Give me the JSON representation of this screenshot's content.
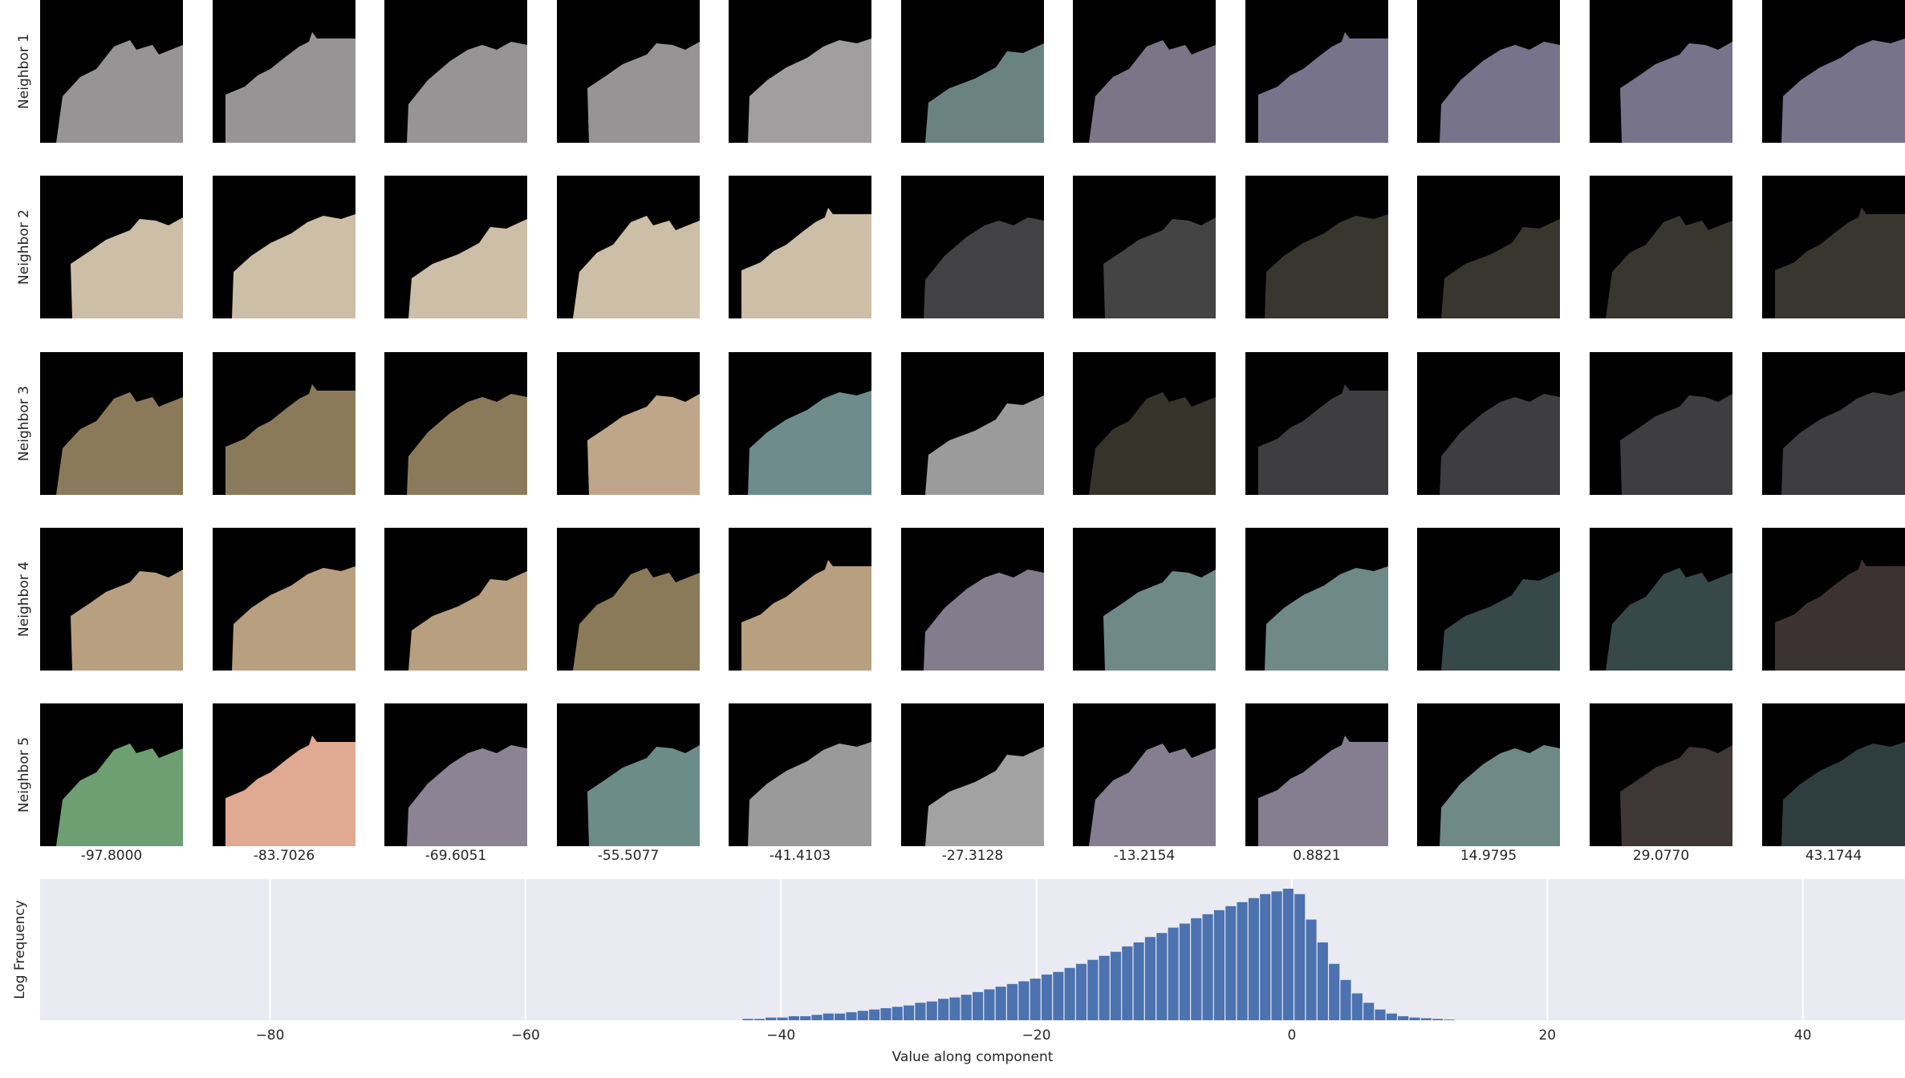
{
  "row_labels": [
    "Neighbor 1",
    "Neighbor 2",
    "Neighbor 3",
    "Neighbor 4",
    "Neighbor 5"
  ],
  "column_values": [
    "-97.8000",
    "-83.7026",
    "-69.6051",
    "-55.5077",
    "-41.4103",
    "-27.3128",
    "-13.2154",
    "0.8821",
    "14.9795",
    "29.0770",
    "43.1744"
  ],
  "tiles": [
    [
      "#979495",
      "#979495",
      "#979495",
      "#979495",
      "#a09e9e",
      "#6a8380",
      "#7a7688",
      "#77738a",
      "#77738a",
      "#77738a",
      "#77738a"
    ],
    [
      "#cdbea7",
      "#cdbea7",
      "#cdbea7",
      "#cdbea7",
      "#cdbea7",
      "#424244",
      "#444445",
      "#373730",
      "#373730",
      "#373730",
      "#373730"
    ],
    [
      "#8b7a5a",
      "#8b7a5a",
      "#8b7a5a",
      "#bfa688",
      "#6e8c8c",
      "#9b9b9b",
      "#35342a",
      "#3e3e40",
      "#3e3e40",
      "#3e3e40",
      "#3e3e40"
    ],
    [
      "#b79f80",
      "#b79f80",
      "#b79f80",
      "#8a7a58",
      "#b79f80",
      "#837c8c",
      "#6e8986",
      "#6e8986",
      "#374848",
      "#374848",
      "#3d3232"
    ],
    [
      "#6e9f72",
      "#e0a992",
      "#8c8394",
      "#6c8c88",
      "#9a9a9a",
      "#a2a2a2",
      "#857e90",
      "#857e90",
      "#6e8986",
      "#3f3636",
      "#2e3e3e"
    ]
  ],
  "chart_data": {
    "type": "bar",
    "title": "",
    "xlabel": "Value along component",
    "ylabel": "Log Frequency",
    "xlim": [
      -98,
      48
    ],
    "x_ticks": [
      -80,
      -60,
      -40,
      -20,
      0,
      20,
      40
    ],
    "x_tick_labels": [
      "−80",
      "−60",
      "−40",
      "−20",
      "0",
      "20",
      "40"
    ],
    "y_scale": "log",
    "grid": true,
    "bar_color": "#4c72b0",
    "background": "#eaeaf2",
    "bin_width": 0.9,
    "bins": [
      -43.0,
      -42.1,
      -41.2,
      -40.3,
      -39.4,
      -38.5,
      -37.6,
      -36.7,
      -35.8,
      -34.9,
      -34.0,
      -33.1,
      -32.2,
      -31.3,
      -30.4,
      -29.5,
      -28.6,
      -27.7,
      -26.8,
      -25.9,
      -25.0,
      -24.1,
      -23.2,
      -22.3,
      -21.4,
      -20.5,
      -19.6,
      -18.7,
      -17.8,
      -16.9,
      -16.0,
      -15.1,
      -14.2,
      -13.3,
      -12.4,
      -11.5,
      -10.6,
      -9.7,
      -8.8,
      -7.9,
      -7.0,
      -6.1,
      -5.2,
      -4.3,
      -3.4,
      -2.5,
      -1.6,
      -0.7,
      0.2,
      1.1,
      2.0,
      2.9,
      3.8,
      4.7,
      5.6,
      6.5,
      7.4,
      8.3,
      9.2,
      10.1,
      11.0,
      11.9
    ],
    "heights": [
      1,
      1,
      2,
      2,
      3,
      3,
      4,
      5,
      5,
      6,
      7,
      8,
      9,
      10,
      11,
      13,
      14,
      16,
      17,
      19,
      21,
      23,
      25,
      27,
      29,
      31,
      34,
      36,
      39,
      42,
      45,
      48,
      51,
      55,
      58,
      62,
      65,
      69,
      72,
      76,
      79,
      82,
      85,
      88,
      91,
      94,
      96,
      98,
      94,
      75,
      58,
      42,
      30,
      20,
      13,
      8,
      5,
      3,
      2,
      1.5,
      1,
      0.5
    ],
    "height_unit": "relative (% of tallest bar)"
  }
}
